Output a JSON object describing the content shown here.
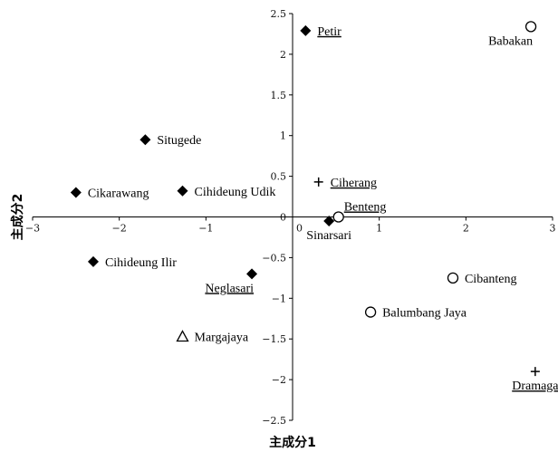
{
  "chart_data": {
    "type": "scatter",
    "title": "",
    "xlabel": "主成分1",
    "ylabel": "主成分2",
    "xlim": [
      -3,
      3
    ],
    "ylim": [
      -2.5,
      2.5
    ],
    "xticks": [
      -3,
      -2,
      -1,
      0,
      1,
      2,
      3
    ],
    "yticks": [
      2.5,
      2,
      1.5,
      1,
      0.5,
      0,
      -0.5,
      -1,
      -1.5,
      -2,
      -2.5
    ],
    "xtick_labels": [
      "−3",
      "−2",
      "−1",
      "0",
      "1",
      "2",
      "3"
    ],
    "ytick_labels": [
      "2.5",
      "2",
      "1.5",
      "1",
      "0.5",
      "0",
      "−0.5",
      "−1",
      "−1.5",
      "−2",
      "−2.5"
    ],
    "grid": false,
    "points": [
      {
        "label": "Petir",
        "x": 0.15,
        "y": 2.29,
        "marker": "diamond",
        "underline": true,
        "label_pos": "right"
      },
      {
        "label": "Babakan",
        "x": 2.75,
        "y": 2.34,
        "marker": "circle",
        "underline": false,
        "label_pos": "below-left"
      },
      {
        "label": "Situgede",
        "x": -1.7,
        "y": 0.95,
        "marker": "diamond",
        "underline": false,
        "label_pos": "right"
      },
      {
        "label": "Cikarawang",
        "x": -2.5,
        "y": 0.3,
        "marker": "diamond",
        "underline": false,
        "label_pos": "right"
      },
      {
        "label": "Cihideung Udik",
        "x": -1.27,
        "y": 0.32,
        "marker": "diamond",
        "underline": false,
        "label_pos": "right"
      },
      {
        "label": "Ciherang",
        "x": 0.3,
        "y": 0.43,
        "marker": "plus",
        "underline": true,
        "label_pos": "right"
      },
      {
        "label": "Benteng",
        "x": 0.53,
        "y": 0.0,
        "marker": "circle",
        "underline": true,
        "label_pos": "above-right"
      },
      {
        "label": "Sinarsari",
        "x": 0.42,
        "y": -0.05,
        "marker": "diamond",
        "underline": false,
        "label_pos": "below"
      },
      {
        "label": "Cihideung Ilir",
        "x": -2.3,
        "y": -0.55,
        "marker": "diamond",
        "underline": false,
        "label_pos": "right"
      },
      {
        "label": "Neglasari",
        "x": -0.47,
        "y": -0.7,
        "marker": "diamond",
        "underline": true,
        "label_pos": "below-left"
      },
      {
        "label": "Cibanteng",
        "x": 1.85,
        "y": -0.75,
        "marker": "circle",
        "underline": false,
        "label_pos": "right"
      },
      {
        "label": "Balumbang Jaya",
        "x": 0.9,
        "y": -1.17,
        "marker": "circle",
        "underline": false,
        "label_pos": "right"
      },
      {
        "label": "Margajaya",
        "x": -1.27,
        "y": -1.47,
        "marker": "triangle",
        "underline": false,
        "label_pos": "right"
      },
      {
        "label": "Dramaga",
        "x": 2.8,
        "y": -1.9,
        "marker": "plus",
        "underline": true,
        "label_pos": "below"
      }
    ]
  }
}
